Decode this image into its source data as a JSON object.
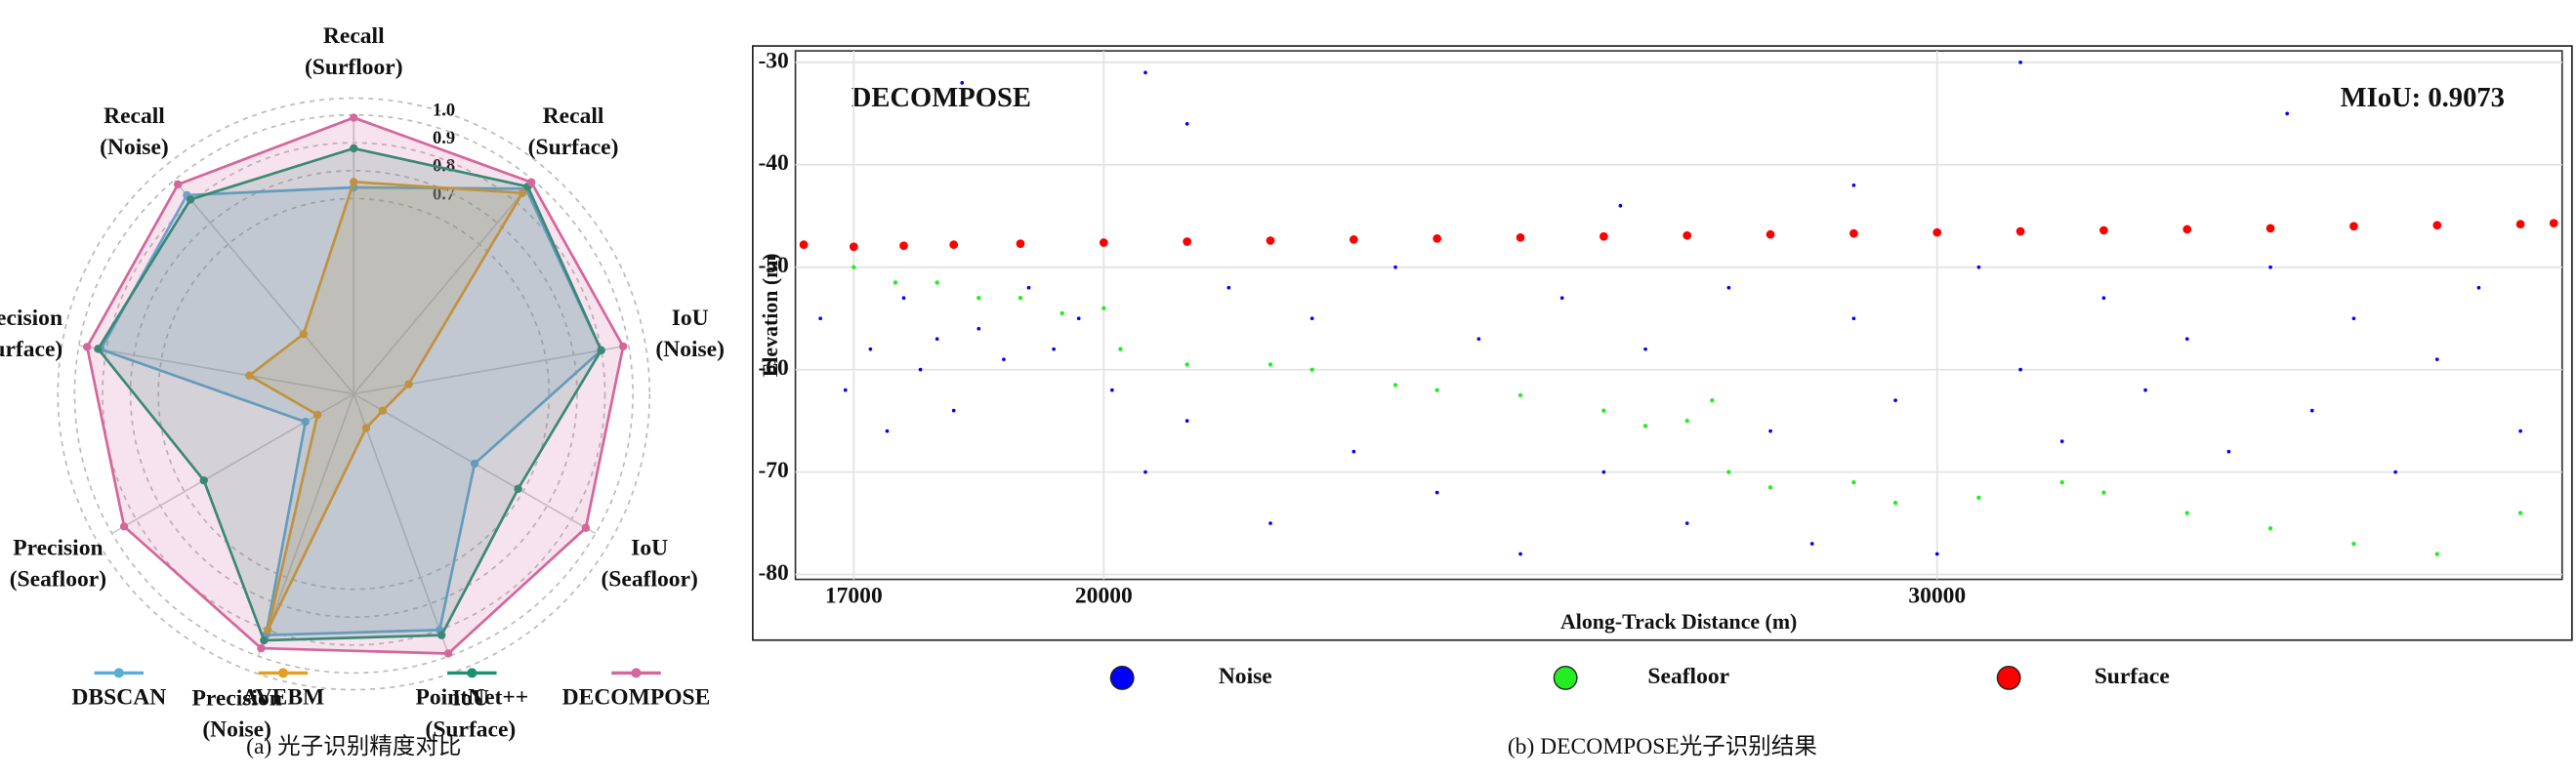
{
  "chart_data": [
    {
      "type": "radar",
      "caption": "(a) 光子识别精度对比",
      "axes": [
        [
          "Recall",
          "(Surfloor)"
        ],
        [
          "Recall",
          "(Surface)"
        ],
        [
          "IoU",
          "(Noise)"
        ],
        [
          "IoU",
          "(Seafloor)"
        ],
        [
          "IoU",
          "(Surface)"
        ],
        [
          "Precision",
          "(Noise)"
        ],
        [
          "Precision",
          "(Seafloor)"
        ],
        [
          "Precision",
          "(Surface)"
        ],
        [
          "Recall",
          "(Noise)"
        ]
      ],
      "rlim": [
        0,
        1
      ],
      "rticks": [
        0.7,
        0.8,
        0.9,
        {
          "value": 1,
          "label": "1.0"
        }
      ],
      "series": [
        {
          "name": "DBSCAN",
          "color": "#5aaed6",
          "values": [
            0.74,
            0.96,
            0.9,
            0.5,
            0.9,
            0.92,
            0.2,
            0.92,
            0.93
          ]
        },
        {
          "name": "AVEBM",
          "color": "#e0a020",
          "values": [
            0.76,
            0.94,
            0.2,
            0.12,
            0.13,
            0.9,
            0.15,
            0.38,
            0.28
          ]
        },
        {
          "name": "PointNet++",
          "color": "#1a9070",
          "values": [
            0.88,
            0.97,
            0.9,
            0.68,
            0.92,
            0.94,
            0.62,
            0.93,
            0.91
          ]
        },
        {
          "name": "DECOMPOSE",
          "color": "#d4669a",
          "values": [
            0.99,
            0.99,
            0.98,
            0.96,
            0.99,
            0.97,
            0.95,
            0.97,
            0.98
          ]
        }
      ]
    },
    {
      "type": "scatter",
      "caption": "(b) DECOMPOSE光子识别结果",
      "xlabel": "Along-Track Distance (m)",
      "ylabel": "Elevation (m)",
      "annotations": [
        "DECOMPOSE",
        "MIoU: 0.9073"
      ],
      "xlim": [
        16300,
        37500
      ],
      "ylim": [
        -80,
        -30
      ],
      "xticks": [
        17000,
        20000,
        30000
      ],
      "yticks": [
        -30,
        -40,
        -50,
        -60,
        -70,
        -80
      ],
      "grid": true,
      "series": [
        {
          "name": "Noise",
          "color": "#0000ff",
          "x": [
            16600,
            16900,
            17200,
            17400,
            17600,
            17800,
            18000,
            18200,
            18500,
            18800,
            19100,
            19400,
            19700,
            20100,
            20500,
            21000,
            21500,
            22000,
            22500,
            23000,
            23500,
            24000,
            24500,
            25000,
            25500,
            26000,
            26500,
            27000,
            27500,
            28000,
            28500,
            29000,
            29500,
            30000,
            30500,
            31000,
            31500,
            32000,
            32500,
            33000,
            33500,
            34000,
            34500,
            35000,
            35500,
            36000,
            36500,
            37000,
            20500,
            29000,
            34200,
            18300,
            21000,
            26200,
            31000
          ],
          "y": [
            -55,
            -62,
            -58,
            -66,
            -53,
            -60,
            -57,
            -64,
            -56,
            -59,
            -52,
            -58,
            -55,
            -62,
            -70,
            -65,
            -52,
            -75,
            -55,
            -68,
            -50,
            -72,
            -57,
            -78,
            -53,
            -70,
            -58,
            -75,
            -52,
            -66,
            -77,
            -55,
            -63,
            -78,
            -50,
            -60,
            -67,
            -53,
            -62,
            -57,
            -68,
            -50,
            -64,
            -55,
            -70,
            -59,
            -52,
            -66,
            -31,
            -42,
            -35,
            -32,
            -36,
            -44,
            -30
          ]
        },
        {
          "name": "Seafloor",
          "color": "#22ee22",
          "x": [
            17000,
            17500,
            18000,
            18500,
            19000,
            19500,
            20000,
            20200,
            21000,
            22000,
            22500,
            23500,
            24000,
            25000,
            26000,
            26500,
            27000,
            27300,
            27500,
            28000,
            29000,
            29500,
            30500,
            31500,
            32000,
            33000,
            34000,
            35000,
            36000,
            37000
          ],
          "y": [
            -50,
            -51.5,
            -51.5,
            -53,
            -53,
            -54.5,
            -54,
            -58,
            -59.5,
            -59.5,
            -60,
            -61.5,
            -62,
            -62.5,
            -64,
            -65.5,
            -65,
            -63,
            -70,
            -71.5,
            -71,
            -73,
            -72.5,
            -71,
            -72,
            -74,
            -75.5,
            -77,
            -78,
            -74
          ]
        },
        {
          "name": "Surface",
          "color": "#ff0000",
          "x": [
            16400,
            17000,
            17600,
            18200,
            19000,
            20000,
            21000,
            22000,
            23000,
            24000,
            25000,
            26000,
            27000,
            28000,
            29000,
            30000,
            31000,
            32000,
            33000,
            34000,
            35000,
            36000,
            37000,
            37400
          ],
          "y": [
            -47.8,
            -48,
            -47.9,
            -47.8,
            -47.7,
            -47.6,
            -47.5,
            -47.4,
            -47.3,
            -47.2,
            -47.1,
            -47,
            -46.9,
            -46.8,
            -46.7,
            -46.6,
            -46.5,
            -46.4,
            -46.3,
            -46.2,
            -46,
            -45.9,
            -45.8,
            -45.7
          ]
        }
      ]
    }
  ]
}
